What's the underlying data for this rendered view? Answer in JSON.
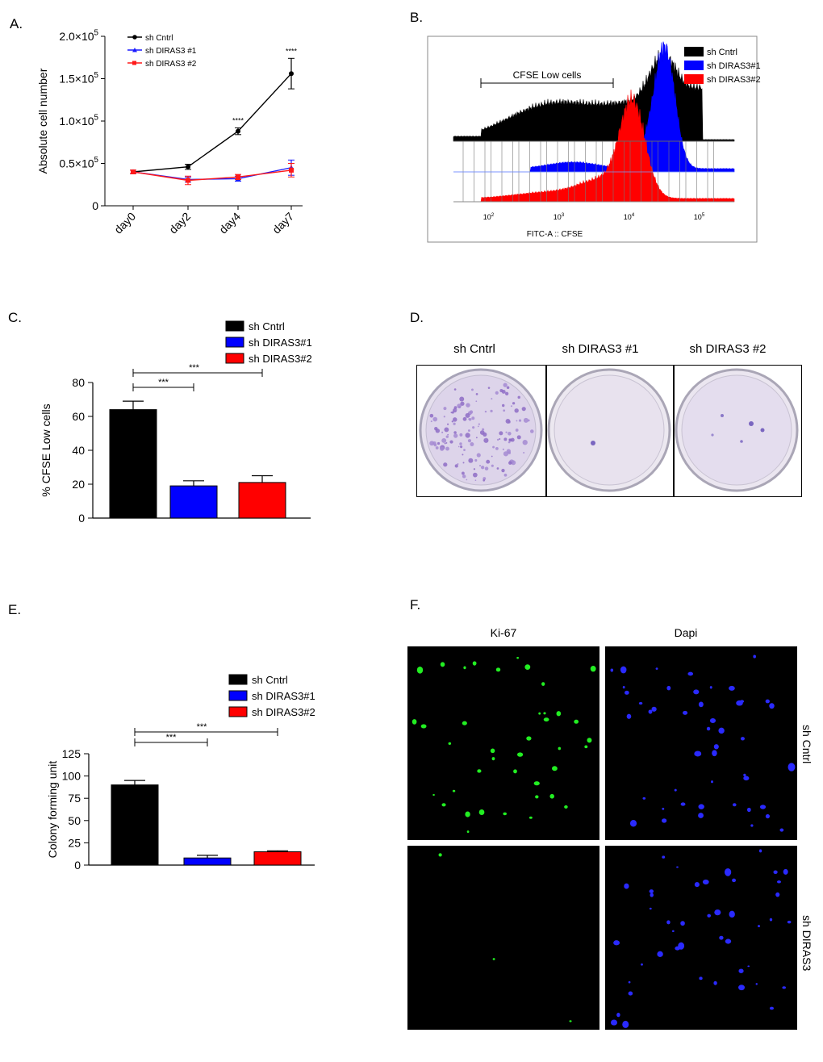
{
  "panels": {
    "a": "A.",
    "b": "B.",
    "c": "C.",
    "d": "D.",
    "e": "E.",
    "f": "F."
  },
  "chart_data": [
    {
      "id": "A",
      "type": "line",
      "ylabel": "Absolute cell number",
      "xlabel": "",
      "categories": [
        "day0",
        "day2",
        "day4",
        "day7"
      ],
      "ylim": [
        0,
        200000
      ],
      "yticks": [
        {
          "value": 0,
          "base": "0",
          "exp": ""
        },
        {
          "value": 50000,
          "base": "0.5×10",
          "exp": "5"
        },
        {
          "value": 100000,
          "base": "1.0×10",
          "exp": "5"
        },
        {
          "value": 150000,
          "base": "1.5×10",
          "exp": "5"
        },
        {
          "value": 200000,
          "base": "2.0×10",
          "exp": "5"
        }
      ],
      "series": [
        {
          "name": "sh Cntrl",
          "color": "#000000",
          "marker": "circle",
          "values": [
            40000,
            46000,
            88000,
            156000
          ],
          "errors": [
            2000,
            3000,
            4000,
            18000
          ]
        },
        {
          "name": "sh DIRAS3 #1",
          "color": "#1a1aff",
          "marker": "triangle",
          "values": [
            40000,
            31000,
            32000,
            45000
          ],
          "errors": [
            2000,
            3000,
            3000,
            9000
          ]
        },
        {
          "name": "sh DIRAS3 #2",
          "color": "#ff1a1a",
          "marker": "square",
          "values": [
            40000,
            30000,
            34000,
            42000
          ],
          "errors": [
            2000,
            5000,
            3000,
            8000
          ]
        }
      ],
      "significance": [
        {
          "category": "day4",
          "text": "****"
        },
        {
          "category": "day7",
          "text": "****"
        }
      ]
    },
    {
      "id": "B",
      "type": "area",
      "title": "CFSE Low cells",
      "xlabel": "FITC-A :: CFSE",
      "xscale": "log",
      "xticks": [
        {
          "base": "10",
          "exp": "2"
        },
        {
          "base": "10",
          "exp": "3"
        },
        {
          "base": "10",
          "exp": "4"
        },
        {
          "base": "10",
          "exp": "5"
        }
      ],
      "series": [
        {
          "name": "sh Cntrl",
          "color": "#000000",
          "peak_log10": 4.5
        },
        {
          "name": "sh DIRAS3#1",
          "color": "#0000ff",
          "peak_log10": 4.5
        },
        {
          "name": "sh DIRAS3#2",
          "color": "#ff0000",
          "peak_log10": 4.0
        }
      ]
    },
    {
      "id": "C",
      "type": "bar",
      "ylabel": "% CFSE Low cells",
      "categories": [
        "sh Cntrl",
        "sh DIRAS3#1",
        "sh DIRAS3#2"
      ],
      "values": [
        64,
        19,
        21
      ],
      "errors": [
        5,
        3,
        4
      ],
      "colors": [
        "#000000",
        "#0000ff",
        "#ff0000"
      ],
      "ylim": [
        0,
        80
      ],
      "yticks": [
        0,
        20,
        40,
        60,
        80
      ],
      "significance": [
        {
          "from": 0,
          "to": 1,
          "text": "***"
        },
        {
          "from": 0,
          "to": 2,
          "text": "***"
        }
      ]
    },
    {
      "id": "E",
      "type": "bar",
      "ylabel": "Colony forming unit",
      "categories": [
        "sh Cntrl",
        "sh DIRAS3#1",
        "sh DIRAS3#2"
      ],
      "values": [
        90,
        8,
        15
      ],
      "errors": [
        5,
        3,
        1
      ],
      "colors": [
        "#000000",
        "#0000ff",
        "#ff0000"
      ],
      "ylim": [
        0,
        125
      ],
      "yticks": [
        0,
        25,
        50,
        75,
        100,
        125
      ],
      "significance": [
        {
          "from": 0,
          "to": 1,
          "text": "***"
        },
        {
          "from": 0,
          "to": 2,
          "text": "***"
        }
      ]
    }
  ],
  "dishes": {
    "labels": [
      "sh Cntrl",
      "sh DIRAS3 #1",
      "sh DIRAS3 #2"
    ]
  },
  "fluorescence": {
    "columns": [
      "Ki-67",
      "Dapi"
    ],
    "rows": [
      "sh Cntrl",
      "sh DIRAS3"
    ],
    "colors": {
      "ki67": "#22ee22",
      "dapi": "#2a2aff"
    }
  }
}
